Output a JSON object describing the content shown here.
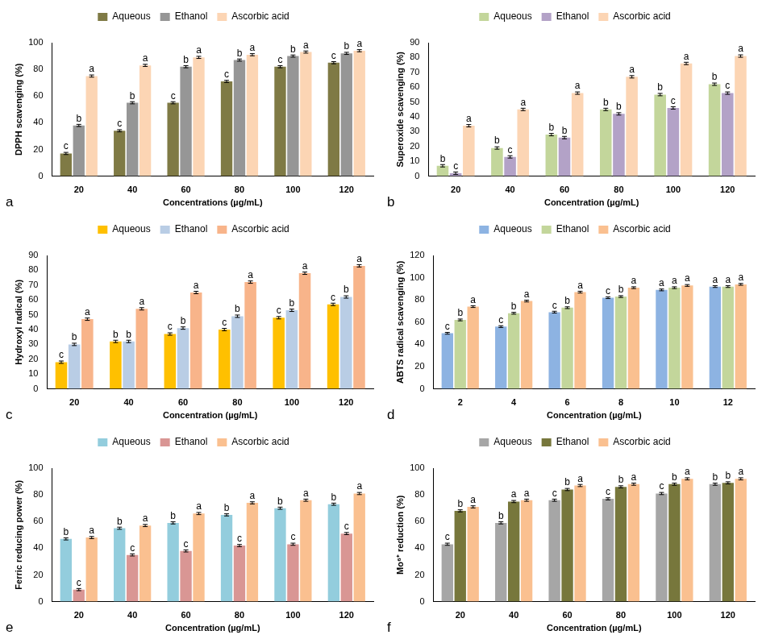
{
  "chart_data": [
    {
      "type": "bar",
      "panel": "a",
      "x_label": "Concentrations (µg/mL)",
      "y_label": "DPPH scavenging (%)",
      "categories": [
        20,
        40,
        60,
        80,
        100,
        120
      ],
      "series": [
        {
          "name": "Aqueous",
          "color": "#7f7a45",
          "values": [
            17,
            34,
            55,
            71,
            82,
            85
          ],
          "errors": [
            0.8,
            0.8,
            0.8,
            0.8,
            0.8,
            0.8
          ],
          "letters": [
            "c",
            "c",
            "c",
            "c",
            "c",
            "c"
          ]
        },
        {
          "name": "Ethanol",
          "color": "#969696",
          "values": [
            38,
            55,
            82,
            87,
            90,
            92
          ],
          "errors": [
            0.8,
            0.8,
            0.8,
            0.8,
            0.8,
            0.8
          ],
          "letters": [
            "b",
            "b",
            "b",
            "b",
            "b",
            "b"
          ]
        },
        {
          "name": "Ascorbic acid",
          "color": "#fcd5b4",
          "values": [
            75,
            83,
            89,
            91,
            93,
            94
          ],
          "errors": [
            0.8,
            0.8,
            0.8,
            0.8,
            0.8,
            0.8
          ],
          "letters": [
            "a",
            "a",
            "a",
            "a",
            "a",
            "a"
          ]
        }
      ],
      "ylim": [
        0,
        100
      ],
      "yticks": [
        0,
        20,
        40,
        60,
        80,
        100
      ],
      "grid": false,
      "legend": "top"
    },
    {
      "type": "bar",
      "panel": "b",
      "x_label": "Concentration (µg/mL)",
      "y_label": "Superoxide scavenging (%)",
      "categories": [
        20,
        40,
        60,
        80,
        100,
        120
      ],
      "series": [
        {
          "name": "Aqueous",
          "color": "#c3d69b",
          "values": [
            7,
            19,
            28,
            45,
            55,
            62
          ],
          "errors": [
            0.8,
            0.8,
            0.8,
            0.8,
            0.8,
            0.8
          ],
          "letters": [
            "b",
            "b",
            "b",
            "b",
            "b",
            "b"
          ]
        },
        {
          "name": "Ethanol",
          "color": "#b3a2c7",
          "values": [
            2,
            13,
            26,
            42,
            46,
            56
          ],
          "errors": [
            0.8,
            0.8,
            0.8,
            0.8,
            0.8,
            0.8
          ],
          "letters": [
            "c",
            "c",
            "b",
            "b",
            "c",
            "c"
          ]
        },
        {
          "name": "Ascorbic acid",
          "color": "#fcd5b4",
          "values": [
            34,
            45,
            56,
            67,
            76,
            81
          ],
          "errors": [
            0.8,
            0.8,
            0.8,
            0.8,
            0.8,
            0.8
          ],
          "letters": [
            "a",
            "a",
            "a",
            "a",
            "a",
            "a"
          ]
        }
      ],
      "ylim": [
        0,
        90
      ],
      "yticks": [
        0,
        10,
        20,
        30,
        40,
        50,
        60,
        70,
        80,
        90
      ],
      "grid": false,
      "legend": "top"
    },
    {
      "type": "bar",
      "panel": "c",
      "x_label": "Concentration (µg/mL)",
      "y_label": "Hydroxyl radical (%)",
      "categories": [
        20,
        40,
        60,
        80,
        100,
        120
      ],
      "series": [
        {
          "name": "Aqueous",
          "color": "#ffc000",
          "values": [
            18,
            32,
            37,
            40,
            48,
            57
          ],
          "errors": [
            0.8,
            0.8,
            0.8,
            0.8,
            0.8,
            0.8
          ],
          "letters": [
            "c",
            "b",
            "c",
            "c",
            "c",
            "c"
          ]
        },
        {
          "name": "Ethanol",
          "color": "#b9cde5",
          "values": [
            30,
            32,
            41,
            49,
            53,
            62
          ],
          "errors": [
            0.8,
            0.8,
            0.8,
            0.8,
            0.8,
            0.8
          ],
          "letters": [
            "b",
            "b",
            "b",
            "b",
            "b",
            "b"
          ]
        },
        {
          "name": "Ascorbic acid",
          "color": "#f8b48a",
          "values": [
            47,
            54,
            65,
            72,
            78,
            83
          ],
          "errors": [
            0.8,
            0.8,
            0.8,
            0.8,
            0.8,
            0.8
          ],
          "letters": [
            "a",
            "a",
            "a",
            "a",
            "a",
            "a"
          ]
        }
      ],
      "ylim": [
        0,
        90
      ],
      "yticks": [
        0,
        10,
        20,
        30,
        40,
        50,
        60,
        70,
        80,
        90
      ],
      "grid": false,
      "legend": "top"
    },
    {
      "type": "bar",
      "panel": "d",
      "x_label": "Concentration (µg/mL)",
      "y_label": "ABTS radical scavenging (%)",
      "categories": [
        2,
        4,
        6,
        8,
        10,
        12
      ],
      "series": [
        {
          "name": "Aqueous",
          "color": "#8db3e2",
          "values": [
            50,
            56,
            69,
            82,
            89,
            92
          ],
          "errors": [
            0.8,
            0.8,
            0.8,
            0.8,
            0.8,
            0.8
          ],
          "letters": [
            "c",
            "c",
            "c",
            "c",
            "a",
            "a"
          ]
        },
        {
          "name": "Ethanol",
          "color": "#c3d69b",
          "values": [
            62,
            68,
            73,
            83,
            91,
            92
          ],
          "errors": [
            0.8,
            0.8,
            0.8,
            0.8,
            0.8,
            0.8
          ],
          "letters": [
            "b",
            "b",
            "b",
            "b",
            "a",
            "a"
          ]
        },
        {
          "name": "Ascorbic acid",
          "color": "#fac090",
          "values": [
            74,
            79,
            87,
            91,
            93,
            94
          ],
          "errors": [
            0.8,
            0.8,
            0.8,
            0.8,
            0.8,
            0.8
          ],
          "letters": [
            "a",
            "a",
            "a",
            "a",
            "a",
            "a"
          ]
        }
      ],
      "ylim": [
        0,
        120
      ],
      "yticks": [
        0,
        20,
        40,
        60,
        80,
        100,
        120
      ],
      "grid": false,
      "legend": "top"
    },
    {
      "type": "bar",
      "panel": "e",
      "x_label": "Concentration (µg/mL)",
      "y_label": "Ferric reducing power (%)",
      "categories": [
        20,
        40,
        60,
        80,
        100,
        120
      ],
      "series": [
        {
          "name": "Aqueous",
          "color": "#93cddd",
          "values": [
            47,
            55,
            59,
            65,
            70,
            73
          ],
          "errors": [
            0.8,
            0.8,
            0.8,
            0.8,
            0.8,
            0.8
          ],
          "letters": [
            "b",
            "b",
            "b",
            "b",
            "b",
            "b"
          ]
        },
        {
          "name": "Ethanol",
          "color": "#d99694",
          "values": [
            9,
            35,
            38,
            42,
            43,
            51
          ],
          "errors": [
            0.8,
            0.8,
            0.8,
            0.8,
            0.8,
            0.8
          ],
          "letters": [
            "c",
            "c",
            "c",
            "c",
            "c",
            "c"
          ]
        },
        {
          "name": "Ascorbic acid",
          "color": "#fac090",
          "values": [
            48,
            57,
            66,
            74,
            76,
            81
          ],
          "errors": [
            0.8,
            0.8,
            0.8,
            0.8,
            0.8,
            0.8
          ],
          "letters": [
            "a",
            "a",
            "a",
            "a",
            "a",
            "a"
          ]
        }
      ],
      "ylim": [
        0,
        100
      ],
      "yticks": [
        0,
        20,
        40,
        60,
        80,
        100
      ],
      "grid": false,
      "legend": "top"
    },
    {
      "type": "bar",
      "panel": "f",
      "x_label": "Concentration (µg/mL)",
      "y_label": "Mo⁶⁺ reduction (%)",
      "categories": [
        20,
        40,
        60,
        80,
        100,
        120
      ],
      "series": [
        {
          "name": "Aqueous",
          "color": "#a6a6a6",
          "values": [
            43,
            59,
            76,
            77,
            81,
            88
          ],
          "errors": [
            0.8,
            0.8,
            0.8,
            0.8,
            0.8,
            0.8
          ],
          "letters": [
            "c",
            "b",
            "c",
            "c",
            "c",
            "b"
          ]
        },
        {
          "name": "Ethanol",
          "color": "#77773c",
          "values": [
            68,
            75,
            84,
            86,
            88,
            89
          ],
          "errors": [
            0.8,
            0.8,
            0.8,
            0.8,
            0.8,
            0.8
          ],
          "letters": [
            "b",
            "a",
            "b",
            "b",
            "b",
            "b"
          ]
        },
        {
          "name": "Ascorbic acid",
          "color": "#fac090",
          "values": [
            71,
            76,
            87,
            88,
            92,
            92
          ],
          "errors": [
            0.8,
            0.8,
            0.8,
            0.8,
            0.8,
            0.8
          ],
          "letters": [
            "a",
            "a",
            "a",
            "a",
            "a",
            "a"
          ]
        }
      ],
      "ylim": [
        0,
        100
      ],
      "yticks": [
        0,
        20,
        40,
        60,
        80,
        100
      ],
      "grid": false,
      "legend": "top"
    }
  ]
}
